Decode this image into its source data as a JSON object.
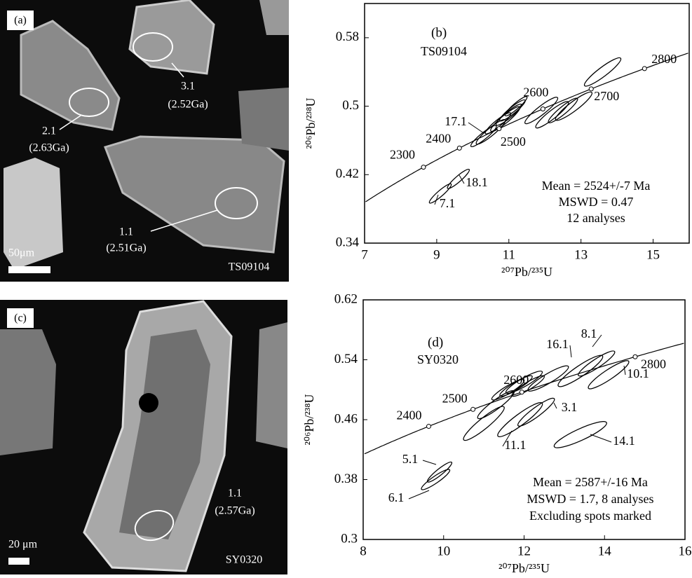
{
  "images": [
    {
      "panel": "(a)",
      "sample": "TS09104",
      "scale": "50μm",
      "spots": [
        {
          "id": "3.1",
          "age": "(2.52Ga)"
        },
        {
          "id": "2.1",
          "age": "(2.63Ga)"
        },
        {
          "id": "1.1",
          "age": "(2.51Ga)"
        }
      ]
    },
    {
      "panel": "(c)",
      "sample": "SY0320",
      "scale": "20 μm",
      "spots": [
        {
          "id": "1.1",
          "age": "(2.57Ga)"
        }
      ]
    }
  ],
  "chart_data": [
    {
      "type": "concordia",
      "panel": "(b)",
      "sample": "TS09104",
      "x_label": "²⁰⁷Pb/²³⁵U",
      "y_label": "²⁰⁶Pb/²³⁸U",
      "xlim": [
        7,
        16
      ],
      "xticks": [
        7,
        9,
        11,
        13,
        15
      ],
      "ylim": [
        0.34,
        0.62
      ],
      "yticks": [
        0.34,
        0.42,
        0.5,
        0.58
      ],
      "age_marks": [
        2300,
        2400,
        2500,
        2600,
        2700,
        2800
      ],
      "notes": [
        "Mean = 2524+/-7  Ma",
        "MSWD = 0.47",
        "12 analyses"
      ],
      "spot_labels": [
        "17.1",
        "18.1",
        "7.1"
      ],
      "ellipses": {
        "x": [
          10.3,
          10.5,
          10.7,
          10.9,
          11.0,
          11.1,
          11.2,
          11.9,
          12.2,
          12.5,
          12.8,
          13.6,
          9.6,
          9.1
        ],
        "y": [
          0.465,
          0.47,
          0.48,
          0.485,
          0.49,
          0.495,
          0.5,
          0.495,
          0.49,
          0.495,
          0.5,
          0.54,
          0.415,
          0.398
        ],
        "x_err": [
          0.35,
          0.4,
          0.35,
          0.4,
          0.35,
          0.35,
          0.3,
          0.45,
          0.45,
          0.4,
          0.5,
          0.5,
          0.3,
          0.3
        ],
        "y_err": [
          0.012,
          0.014,
          0.012,
          0.014,
          0.012,
          0.012,
          0.011,
          0.015,
          0.015,
          0.014,
          0.016,
          0.016,
          0.011,
          0.011
        ]
      }
    },
    {
      "type": "concordia",
      "panel": "(d)",
      "sample": "SY0320",
      "x_label": "²⁰⁷Pb/²³⁵U",
      "y_label": "²⁰⁶Pb/²³⁸U",
      "xlim": [
        8,
        16
      ],
      "xticks": [
        8,
        10,
        12,
        14,
        16
      ],
      "ylim": [
        0.3,
        0.62
      ],
      "yticks": [
        0.3,
        0.38,
        0.46,
        0.54,
        0.62
      ],
      "age_marks": [
        2400,
        2500,
        2600,
        2800
      ],
      "notes": [
        "Mean = 2587+/-16  Ma",
        "MSWD = 1.7, 8 analyses",
        "Excluding spots marked"
      ],
      "spot_labels": [
        "16.1",
        "8.1",
        "10.1",
        "3.1",
        "11.1",
        "14.1",
        "5.1",
        "6.1"
      ],
      "ellipses": {
        "x": [
          11.6,
          11.8,
          12.0,
          12.1,
          12.6,
          13.4,
          13.8,
          14.1,
          12.3,
          11.9,
          11.3,
          11.0,
          13.4,
          9.9,
          9.8
        ],
        "y": [
          0.5,
          0.505,
          0.51,
          0.505,
          0.515,
          0.525,
          0.535,
          0.52,
          0.47,
          0.46,
          0.48,
          0.455,
          0.44,
          0.39,
          0.38
        ],
        "x_err": [
          0.4,
          0.4,
          0.45,
          0.4,
          0.5,
          0.55,
          0.45,
          0.5,
          0.45,
          0.55,
          0.45,
          0.5,
          0.65,
          0.3,
          0.35
        ],
        "y_err": [
          0.013,
          0.013,
          0.014,
          0.013,
          0.016,
          0.02,
          0.016,
          0.018,
          0.018,
          0.022,
          0.018,
          0.022,
          0.016,
          0.013,
          0.013
        ]
      }
    }
  ]
}
